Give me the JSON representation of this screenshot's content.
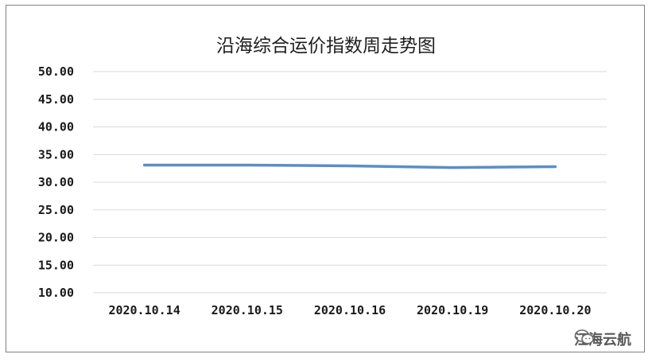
{
  "chart_data": {
    "type": "line",
    "title": "沿海综合运价指数周走势图",
    "categories": [
      "2020.10.14",
      "2020.10.15",
      "2020.10.16",
      "2020.10.19",
      "2020.10.20"
    ],
    "series": [
      {
        "values": [
          33.1,
          33.1,
          32.95,
          32.65,
          32.8
        ]
      }
    ],
    "yticks": [
      "10.00",
      "15.00",
      "20.00",
      "25.00",
      "30.00",
      "35.00",
      "40.00",
      "45.00",
      "50.00"
    ],
    "ylim": [
      10,
      50
    ],
    "xlabel": "",
    "ylabel": "",
    "grid": true,
    "line_color": "#5b8ec6",
    "grid_color": "#d9d9d9"
  },
  "watermark": {
    "text": "江海云航",
    "icon": "wechat-icon"
  }
}
